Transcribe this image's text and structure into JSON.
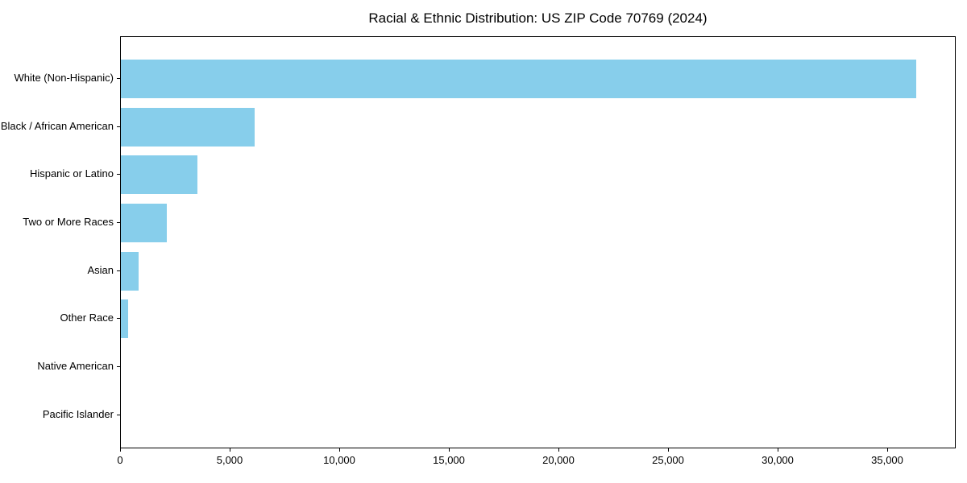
{
  "chart_data": {
    "type": "bar",
    "orientation": "horizontal",
    "title": "Racial & Ethnic Distribution: US ZIP Code 70769 (2024)",
    "categories": [
      "White (Non-Hispanic)",
      "Black / African American",
      "Hispanic or Latino",
      "Two or More Races",
      "Asian",
      "Other Race",
      "Native American",
      "Pacific Islander"
    ],
    "values": [
      36300,
      6100,
      3500,
      2100,
      810,
      330,
      0,
      0
    ],
    "xlabel": "",
    "ylabel": "",
    "xlim": [
      0,
      38125
    ],
    "xticks": [
      0,
      5000,
      10000,
      15000,
      20000,
      25000,
      30000,
      35000
    ],
    "xtick_labels": [
      "0",
      "5,000",
      "10,000",
      "15,000",
      "20,000",
      "25,000",
      "30,000",
      "35,000"
    ],
    "bar_color": "#87CEEB",
    "axis_color": "#000000",
    "grid": false,
    "legend_position": "none"
  }
}
